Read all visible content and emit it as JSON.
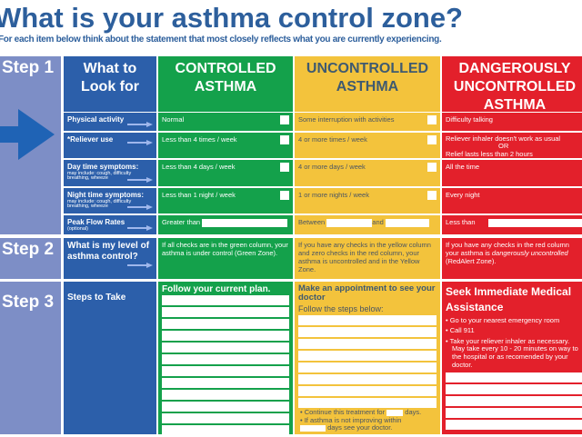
{
  "title": "What is your asthma control zone?",
  "subtitle": "For each item below think about the statement that most closely reflects what you are currently experiencing.",
  "steps": [
    "Step 1",
    "Step 2",
    "Step 3"
  ],
  "header": {
    "look": "What to Look for",
    "controlled": "CONTROLLED ASTHMA",
    "uncontrolled": "UNCONTROLLED ASTHMA",
    "dangerous": "DANGEROUSLY UNCONTROLLED ASTHMA"
  },
  "rows": [
    {
      "label": "Physical activity",
      "sub": "",
      "green": "Normal",
      "yellow": "Some interruption with activities",
      "red": "Difficulty talking"
    },
    {
      "label": "*Reliever use",
      "sub": "",
      "green": "Less than 4 times / week",
      "yellow": "4 or more times / week",
      "red": "Reliever inhaler doesn't work as usual",
      "red_or": "OR",
      "red2": "Relief lasts less than 2 hours"
    },
    {
      "label": "Day time symptoms:",
      "sub": "may include: cough, difficulty breathing, wheeze",
      "green": "Less than 4 days / week",
      "yellow": "4 or more days / week",
      "red": "All the time"
    },
    {
      "label": "Night time symptoms:",
      "sub": "may include: cough, difficulty breathing, wheeze",
      "green": "Less than 1 night / week",
      "yellow": "1 or more nights / week",
      "red": "Every night"
    },
    {
      "label": "Peak Flow Rates",
      "sub": "(optional)",
      "green": "Greater than",
      "yellow": "Between",
      "yellow_and": "and",
      "red": "Less than"
    }
  ],
  "step2": {
    "label": "What is my level of asthma control?",
    "green": "If all checks are in the green column, your asthma is under control (Green Zone).",
    "yellow": "If you have any checks in the yellow column and zero checks in the red column, your asthma is uncontrolled and in the Yellow Zone.",
    "red_a": "If you have any checks in the red column your asthma is ",
    "red_em": "dangerously uncontrolled",
    "red_b": " (RedAlert Zone)."
  },
  "step3": {
    "label": "Steps to Take",
    "green": "Follow your current plan.",
    "yellow_title": "Make an appointment to see your doctor",
    "yellow_sub": "Follow the steps below:",
    "yellow_b1a": "Continue this treatment for",
    "yellow_b1b": "days.",
    "yellow_b2a": "If asthma is not improving within",
    "yellow_b2b": "days see your doctor.",
    "red_title": "Seek Immediate Medical Assistance",
    "red_items": [
      "Go to your nearest emergency room",
      "Call 911",
      "Take your reliever inhaler as necessary. May take every 10 - 20 minutes on way to the hospital or as recomended by your doctor."
    ]
  },
  "colors": {
    "green": "#14a14b",
    "yellow": "#f3c33c",
    "red": "#e3202b",
    "blue": "#2c5faa",
    "title": "#2d5f9c"
  }
}
